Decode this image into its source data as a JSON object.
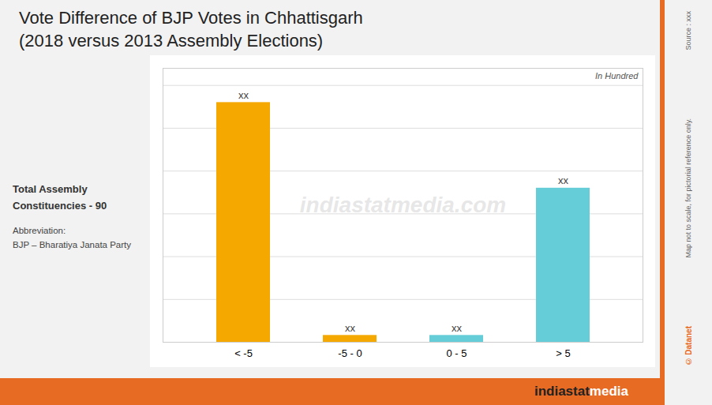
{
  "chart_data": {
    "type": "bar",
    "title": "Vote Difference of BJP Votes in Chhattisgarh",
    "subtitle": "(2018 versus 2013 Assembly Elections)",
    "categories": [
      "< -5",
      "-5 - 0",
      "0 - 5",
      "> 5"
    ],
    "values": [
      28,
      0.8,
      0.8,
      18
    ],
    "value_labels": [
      "xx",
      "xx",
      "xx",
      "xx"
    ],
    "data_labels": true,
    "colors": [
      "#F5A800",
      "#F5A800",
      "#65CDD8",
      "#65CDD8"
    ],
    "ylim": [
      0,
      32
    ],
    "yticks": [
      0,
      5,
      10,
      15,
      20,
      25,
      30
    ],
    "grid": true,
    "tick_labels": "x",
    "annotations": [
      "In Hundred",
      "Total Assembly\nConstituencies - 90",
      "Abbreviation:",
      "BJP – Bharatiya Janata Party",
      "indiastatmedia.com",
      "indiastat",
      "media",
      "Source : xxx",
      "Map not to scale, for pictorial reference only.",
      "© Datanet"
    ]
  }
}
